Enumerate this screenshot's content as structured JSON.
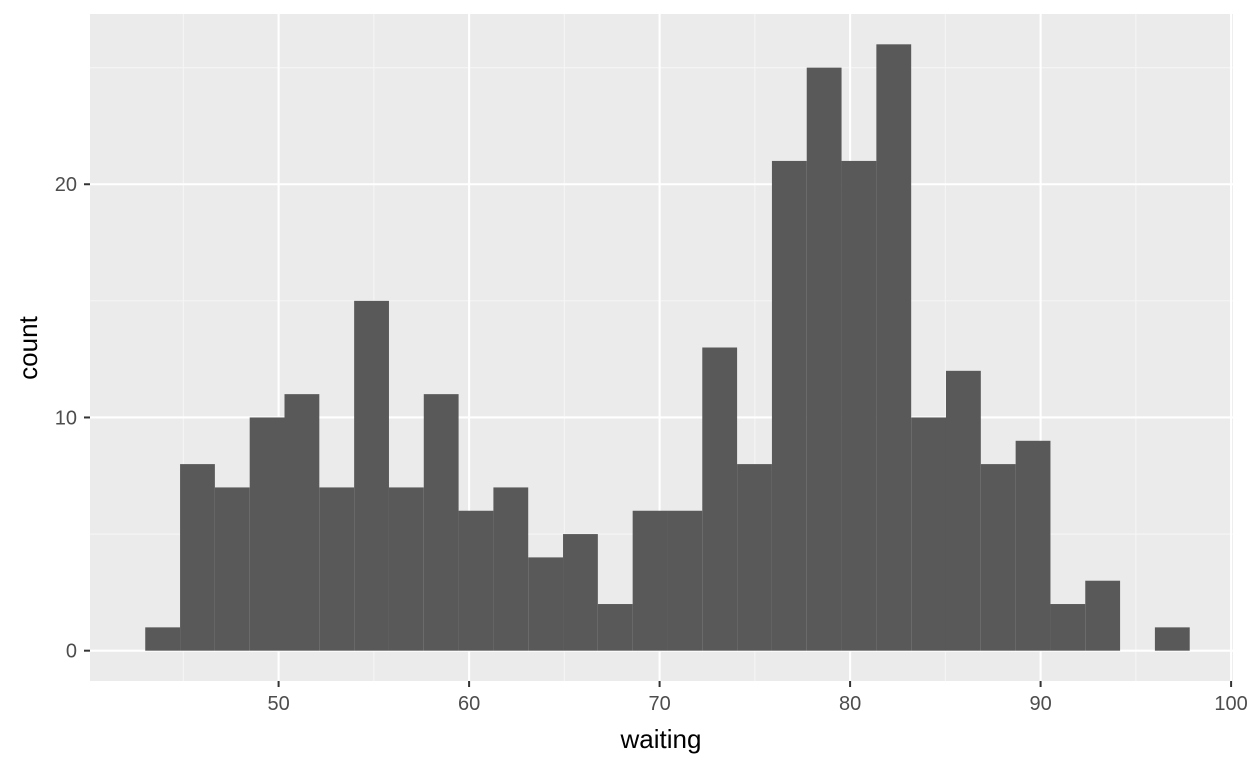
{
  "chart_data": {
    "type": "bar",
    "subtype": "histogram",
    "xlabel": "waiting",
    "ylabel": "count",
    "xlim": [
      40.1,
      100.1
    ],
    "ylim": [
      -1.3,
      27.3
    ],
    "x_ticks": [
      50,
      60,
      70,
      80,
      90,
      100
    ],
    "y_ticks": [
      0,
      10,
      20
    ],
    "grid": true,
    "legend": "none",
    "colors": {
      "bar": "#595959",
      "panel": "#ebebeb",
      "grid_major": "#ffffff",
      "grid_minor": "#f5f5f5",
      "tick_label": "#4d4d4d",
      "axis_title": "#000000"
    },
    "series": [
      {
        "bin_width": 1.8276,
        "bins_start": [
          43.0,
          44.828,
          46.655,
          48.483,
          50.31,
          52.138,
          53.966,
          55.793,
          57.621,
          59.448,
          61.276,
          63.103,
          64.931,
          66.759,
          68.586,
          70.414,
          72.241,
          74.069,
          75.897,
          77.724,
          79.552,
          81.379,
          83.207,
          85.034,
          86.862,
          88.69,
          90.517,
          92.345,
          94.172,
          96.0
        ],
        "values": [
          1,
          8,
          7,
          10,
          11,
          7,
          15,
          7,
          11,
          6,
          7,
          4,
          5,
          2,
          6,
          6,
          13,
          8,
          21,
          25,
          21,
          26,
          10,
          12,
          8,
          9,
          2,
          3,
          0,
          1
        ]
      }
    ]
  }
}
